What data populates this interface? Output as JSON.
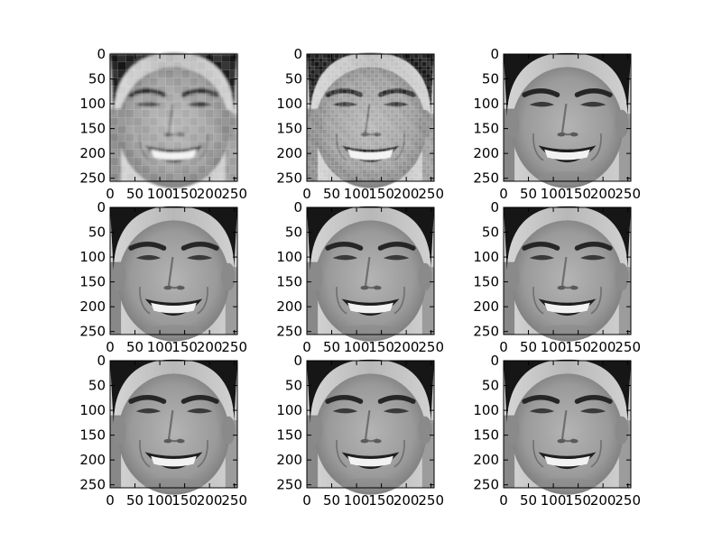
{
  "chart_data": {
    "type": "image-grid",
    "layout": {
      "rows": 3,
      "cols": 3
    },
    "colormap": "gray",
    "axes": {
      "x": {
        "ticks": [
          0,
          50,
          100,
          150,
          200,
          250
        ],
        "tick_labels": [
          "0",
          "50",
          "100",
          "150",
          "200",
          "250"
        ],
        "range": [
          0,
          256
        ]
      },
      "y": {
        "ticks": [
          0,
          50,
          100,
          150,
          200,
          250
        ],
        "tick_labels": [
          "0",
          "50",
          "100",
          "150",
          "200",
          "250"
        ],
        "range": [
          256,
          0
        ],
        "inverted": true
      }
    },
    "panels": [
      {
        "row": 0,
        "col": 0,
        "content": "grayscale face, heavily pixelated",
        "resolution_px": 16,
        "blur": 0
      },
      {
        "row": 0,
        "col": 1,
        "content": "grayscale face, moderately pixelated",
        "resolution_px": 32,
        "blur": 0.6
      },
      {
        "row": 0,
        "col": 2,
        "content": "grayscale face",
        "resolution_px": 256,
        "blur": 0
      },
      {
        "row": 1,
        "col": 0,
        "content": "grayscale face",
        "resolution_px": 256,
        "blur": 0
      },
      {
        "row": 1,
        "col": 1,
        "content": "grayscale face",
        "resolution_px": 256,
        "blur": 0
      },
      {
        "row": 1,
        "col": 2,
        "content": "grayscale face",
        "resolution_px": 256,
        "blur": 0
      },
      {
        "row": 2,
        "col": 0,
        "content": "grayscale face",
        "resolution_px": 256,
        "blur": 0
      },
      {
        "row": 2,
        "col": 1,
        "content": "grayscale face",
        "resolution_px": 256,
        "blur": 0
      },
      {
        "row": 2,
        "col": 2,
        "content": "grayscale face",
        "resolution_px": 256,
        "blur": 0
      }
    ],
    "grid": false,
    "legend": "none"
  }
}
